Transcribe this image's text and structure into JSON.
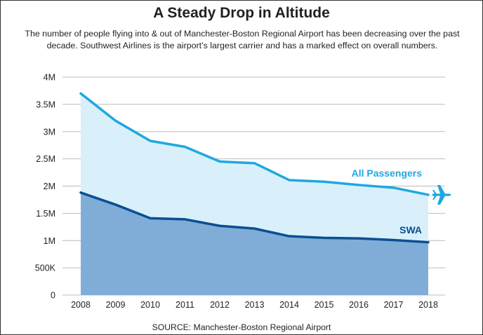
{
  "title": "A Steady Drop in Altitude",
  "subtitle": "The number of people flying into & out of Manchester-Boston Regional Airport has been decreasing over the past decade. Southwest Airlines is the airport’s largest carrier and has a marked effect on overall numbers.",
  "source": "SOURCE: Manchester-Boston Regional Airport",
  "colors": {
    "all_line": "#1fa8e0",
    "all_fill": "#d9f0fb",
    "swa_line": "#0b4f92",
    "swa_fill": "#7fadd8",
    "grid": "#bbbbbb",
    "text": "#231f20"
  },
  "chart_data": {
    "type": "area",
    "title": "A Steady Drop in Altitude",
    "x": [
      "2008",
      "2009",
      "2010",
      "2011",
      "2012",
      "2013",
      "2014",
      "2015",
      "2016",
      "2017",
      "2018"
    ],
    "ylim": [
      0,
      4000000
    ],
    "yticks": [
      0,
      500000,
      1000000,
      1500000,
      2000000,
      2500000,
      3000000,
      3500000,
      4000000
    ],
    "ytick_labels": [
      "0",
      "500K",
      "1M",
      "1.5M",
      "2M",
      "2.5M",
      "3M",
      "3.5M",
      "4M"
    ],
    "grid": true,
    "series": [
      {
        "name": "All Passengers",
        "values": [
          3700000,
          3200000,
          2830000,
          2720000,
          2450000,
          2420000,
          2110000,
          2080000,
          2020000,
          1970000,
          1840000
        ]
      },
      {
        "name": "SWA",
        "values": [
          1880000,
          1660000,
          1410000,
          1390000,
          1270000,
          1220000,
          1080000,
          1050000,
          1040000,
          1010000,
          970000
        ]
      }
    ],
    "annotations": [
      "plane-icon at end of All Passengers line"
    ]
  }
}
